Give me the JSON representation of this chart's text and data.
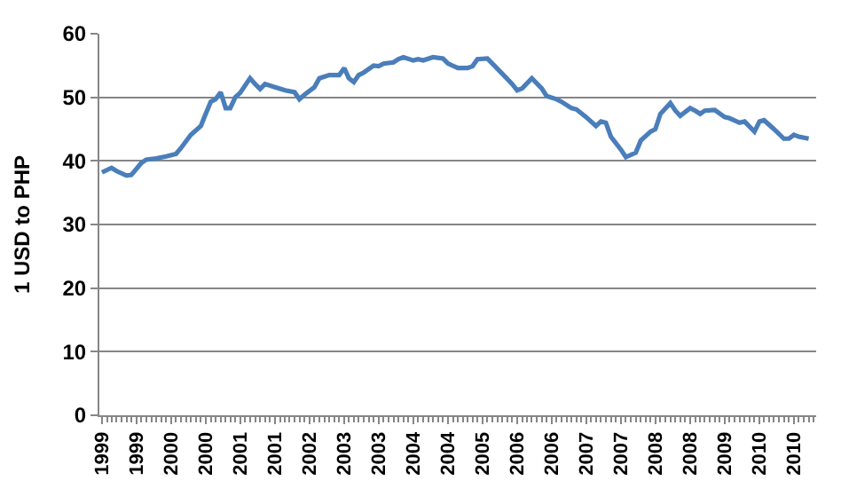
{
  "chart_data": {
    "type": "line",
    "ylabel": "1 USD to PHP",
    "x": [
      "1999-01",
      "1999-03",
      "1999-04",
      "1999-06",
      "1999-07",
      "1999-09",
      "1999-10",
      "1999-12",
      "2000-02",
      "2000-04",
      "2000-05",
      "2000-07",
      "2000-09",
      "2000-10",
      "2000-11",
      "2000-12",
      "2001-01",
      "2001-02",
      "2001-03",
      "2001-04",
      "2001-05",
      "2001-07",
      "2001-08",
      "2001-09",
      "2001-10",
      "2001-12",
      "2002-02",
      "2002-04",
      "2002-05",
      "2002-06",
      "2002-08",
      "2002-09",
      "2002-11",
      "2003-01",
      "2003-02",
      "2003-03",
      "2003-04",
      "2003-05",
      "2003-06",
      "2003-08",
      "2003-09",
      "2003-10",
      "2003-12",
      "2004-01",
      "2004-02",
      "2004-04",
      "2004-05",
      "2004-06",
      "2004-08",
      "2004-10",
      "2004-11",
      "2005-01",
      "2005-03",
      "2005-04",
      "2005-05",
      "2005-07",
      "2005-08",
      "2005-10",
      "2005-12",
      "2006-01",
      "2006-02",
      "2006-04",
      "2006-06",
      "2006-07",
      "2006-09",
      "2006-10",
      "2006-12",
      "2007-01",
      "2007-03",
      "2007-05",
      "2007-06",
      "2007-07",
      "2007-08",
      "2007-10",
      "2007-11",
      "2008-01",
      "2008-02",
      "2008-04",
      "2008-05",
      "2008-06",
      "2008-08",
      "2008-09",
      "2008-10",
      "2008-12",
      "2009-01",
      "2009-02",
      "2009-03",
      "2009-05",
      "2009-07",
      "2009-08",
      "2009-10",
      "2009-11",
      "2010-01",
      "2010-02",
      "2010-03",
      "2010-05",
      "2010-07",
      "2010-08",
      "2010-09",
      "2010-10",
      "2010-12"
    ],
    "series": [
      {
        "color": "#4a7ebb",
        "values": [
          38.2,
          38.9,
          38.4,
          37.7,
          37.8,
          39.7,
          40.2,
          40.4,
          40.7,
          41.1,
          42.0,
          44.1,
          45.5,
          47.4,
          49.3,
          49.7,
          50.8,
          48.3,
          48.3,
          50.0,
          50.7,
          53.0,
          52.1,
          51.3,
          52.1,
          51.6,
          51.1,
          50.8,
          49.7,
          50.4,
          51.6,
          53.0,
          53.5,
          53.5,
          54.6,
          53.0,
          52.4,
          53.5,
          53.9,
          55.0,
          54.9,
          55.3,
          55.5,
          56.0,
          56.3,
          55.8,
          56.0,
          55.8,
          56.3,
          56.1,
          55.3,
          54.6,
          54.6,
          54.9,
          56.0,
          56.1,
          55.3,
          53.7,
          52.1,
          51.1,
          51.4,
          53.0,
          51.4,
          50.2,
          49.7,
          49.3,
          48.3,
          48.1,
          46.9,
          45.5,
          46.2,
          46.0,
          43.8,
          41.8,
          40.6,
          41.3,
          43.2,
          44.6,
          45.0,
          47.4,
          49.1,
          47.9,
          47.1,
          48.3,
          47.9,
          47.4,
          47.9,
          48.0,
          46.9,
          46.7,
          46.0,
          46.2,
          44.6,
          46.2,
          46.4,
          45.0,
          43.5,
          43.5,
          44.1,
          43.8,
          43.5
        ]
      }
    ],
    "xlim": [
      "1998-12-16",
      "2011-01-16"
    ],
    "xticks": [
      {
        "value": "1999-01",
        "label": "1999"
      },
      {
        "value": "1999-08",
        "label": "1999"
      },
      {
        "value": "2000-03",
        "label": "2000"
      },
      {
        "value": "2000-10",
        "label": "2000"
      },
      {
        "value": "2001-05",
        "label": "2001"
      },
      {
        "value": "2001-12",
        "label": "2001"
      },
      {
        "value": "2002-07",
        "label": "2002"
      },
      {
        "value": "2003-02",
        "label": "2003"
      },
      {
        "value": "2003-09",
        "label": "2003"
      },
      {
        "value": "2004-04",
        "label": "2004"
      },
      {
        "value": "2004-11",
        "label": "2004"
      },
      {
        "value": "2005-06",
        "label": "2005"
      },
      {
        "value": "2006-01",
        "label": "2006"
      },
      {
        "value": "2006-08",
        "label": "2006"
      },
      {
        "value": "2007-03",
        "label": "2007"
      },
      {
        "value": "2007-10",
        "label": "2007"
      },
      {
        "value": "2008-05",
        "label": "2008"
      },
      {
        "value": "2008-12",
        "label": "2008"
      },
      {
        "value": "2009-07",
        "label": "2009"
      },
      {
        "value": "2010-02",
        "label": "2010"
      },
      {
        "value": "2010-09",
        "label": "2010"
      }
    ],
    "ylim": [
      0,
      60
    ],
    "yticks": [
      0,
      10,
      20,
      30,
      40,
      50,
      60
    ],
    "grid": "y",
    "marker": "none",
    "line_style": "solid"
  }
}
